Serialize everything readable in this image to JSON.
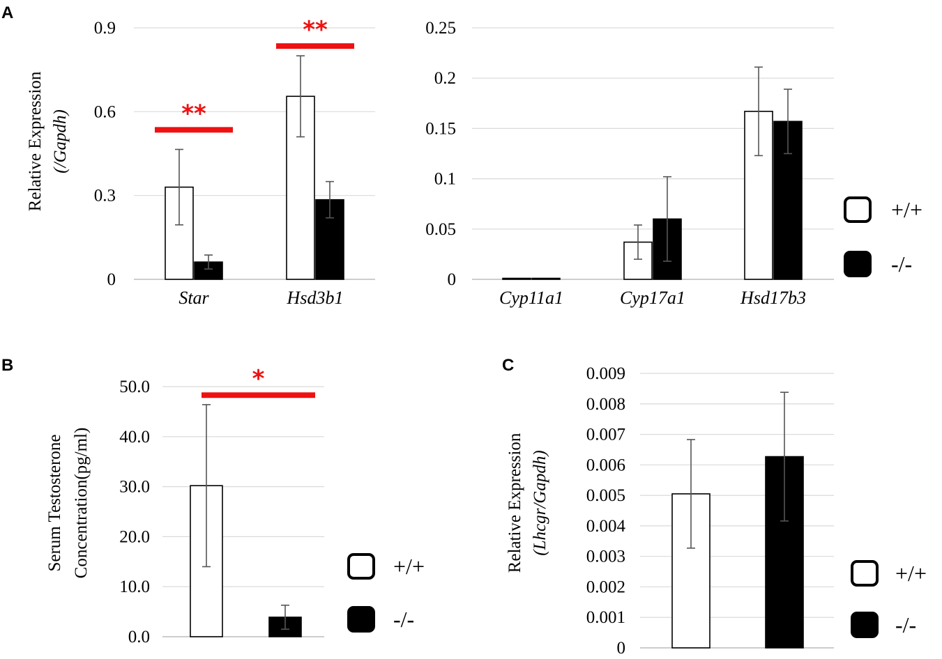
{
  "colors": {
    "sig": "#ee1111",
    "grid": "#d9d9d9",
    "wt": "#ffffff",
    "ko": "#000000",
    "err": "#555555"
  },
  "legend": {
    "wt": "+/+",
    "ko": "-/-"
  },
  "chart_data": [
    {
      "panel": "A",
      "type": "bar",
      "ylabel": "Relative Expression",
      "ylabel_sub": "(/Gapdh)",
      "categories": [
        "Star",
        "Hsd3b1"
      ],
      "ylim": [
        0,
        0.9
      ],
      "yticks": [
        0,
        0.3,
        0.6,
        0.9
      ],
      "ytick_labels": [
        "0",
        "0.3",
        "0.6",
        "0.9"
      ],
      "series": [
        {
          "name": "+/+",
          "values": [
            0.33,
            0.655
          ],
          "errors": [
            0.135,
            0.145
          ]
        },
        {
          "name": "-/-",
          "values": [
            0.062,
            0.285
          ],
          "errors": [
            0.025,
            0.065
          ]
        }
      ],
      "significance": [
        {
          "category": "Star",
          "label": "**",
          "y": 0.535
        },
        {
          "category": "Hsd3b1",
          "label": "**",
          "y": 0.835
        }
      ]
    },
    {
      "panel": "",
      "type": "bar",
      "ylabel": "",
      "categories": [
        "Cyp11a1",
        "Cyp17a1",
        "Hsd17b3"
      ],
      "ylim": [
        0,
        0.25
      ],
      "yticks": [
        0,
        0.05,
        0.1,
        0.15,
        0.2,
        0.25
      ],
      "ytick_labels": [
        "0",
        "0.05",
        "0.1",
        "0.15",
        "0.2",
        "0.25"
      ],
      "series": [
        {
          "name": "+/+",
          "values": [
            0.0003,
            0.037,
            0.167
          ],
          "errors": [
            0,
            0.017,
            0.044
          ]
        },
        {
          "name": "-/-",
          "values": [
            0.0003,
            0.06,
            0.157
          ],
          "errors": [
            0,
            0.042,
            0.032
          ]
        }
      ],
      "significance": []
    },
    {
      "panel": "B",
      "type": "bar",
      "ylabel": "Serum Testosterone",
      "ylabel_sub": "Concentration(pg/ml)",
      "categories": [
        "+/+",
        "-/-"
      ],
      "ylim": [
        0,
        50
      ],
      "yticks": [
        0,
        10,
        20,
        30,
        40,
        50
      ],
      "ytick_labels": [
        "0.0",
        "10.0",
        "20.0",
        "30.0",
        "40.0",
        "50.0"
      ],
      "series": [
        {
          "name": "Serum Testosterone",
          "values": [
            30.2,
            3.9
          ],
          "errors": [
            16.2,
            2.4
          ]
        }
      ],
      "significance": [
        {
          "label": "*",
          "y": 48.3
        }
      ]
    },
    {
      "panel": "C",
      "type": "bar",
      "ylabel": "Relative Expression",
      "ylabel_sub": "(Lhcgr/Gapdh)",
      "categories": [
        "+/+",
        "-/-"
      ],
      "ylim": [
        0,
        0.009
      ],
      "yticks": [
        0,
        0.001,
        0.002,
        0.003,
        0.004,
        0.005,
        0.006,
        0.007,
        0.008,
        0.009
      ],
      "ytick_labels": [
        "0",
        "0.001",
        "0.002",
        "0.003",
        "0.004",
        "0.005",
        "0.006",
        "0.007",
        "0.008",
        "0.009"
      ],
      "series": [
        {
          "name": "Lhcgr",
          "values": [
            0.00505,
            0.00627
          ],
          "errors": [
            0.00178,
            0.00211
          ]
        }
      ],
      "significance": []
    }
  ]
}
